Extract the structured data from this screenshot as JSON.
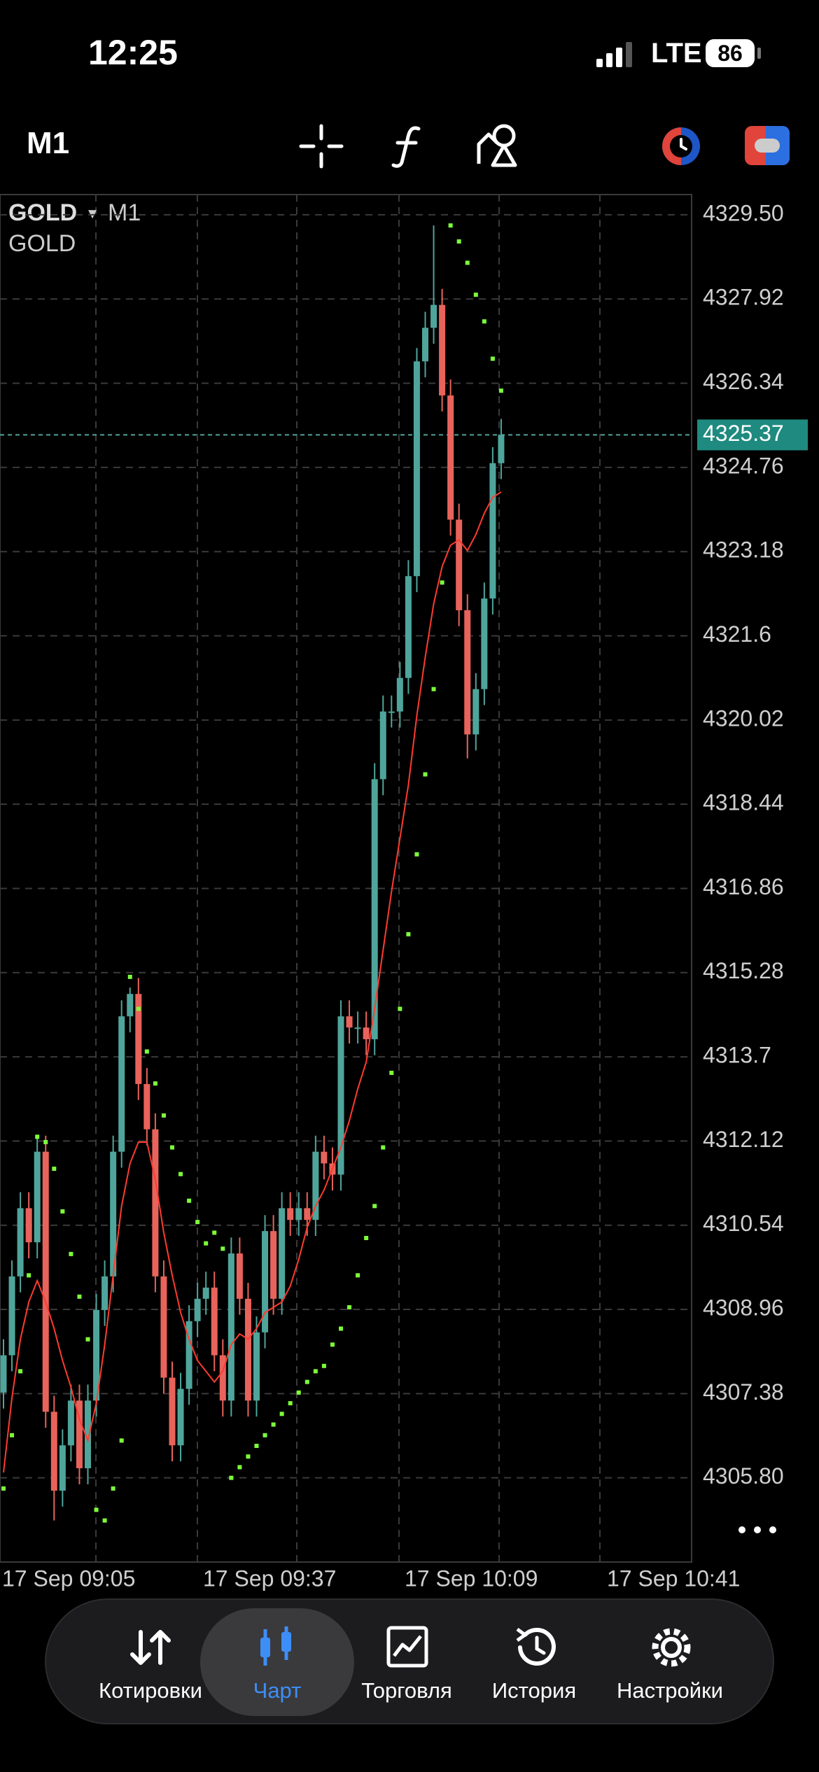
{
  "status_bar": {
    "time": "12:25",
    "network": "LTE",
    "battery": "86"
  },
  "toolbar": {
    "timeframe": "M1"
  },
  "chart_data": {
    "type": "candlestick",
    "symbol": "GOLD",
    "symbol_timeframe": "M1",
    "subtitle": "GOLD",
    "up_color": "#4fa59b",
    "down_color": "#e8635b",
    "ma_color": "#ff3b30",
    "sar_color": "#7dff3a",
    "open": [
      4307.4,
      4308.1,
      4309.58,
      4310.86,
      4310.22,
      4311.92,
      4307.04,
      4305.56,
      4306.41,
      4307.25,
      4305.98,
      4307.25,
      4308.95,
      4309.58,
      4311.92,
      4314.46,
      4314.88,
      4313.19,
      4312.34,
      4309.58,
      4307.68,
      4306.41,
      4307.47,
      4308.74,
      4309.16,
      4309.37,
      4308.1,
      4307.25,
      4310.01,
      4309.16,
      4307.25,
      4308.53,
      4310.43,
      4309.16,
      4310.86,
      4310.64,
      4310.86,
      4310.64,
      4311.92,
      4311.7,
      4311.49,
      4314.46,
      4314.25,
      4314.25,
      4314.03,
      4318.91,
      4320.18,
      4320.18,
      4320.81,
      4322.72,
      4326.75,
      4327.38,
      4327.81,
      4326.11,
      4323.78,
      4322.08,
      4319.75,
      4320.6,
      4322.3,
      4324.84
    ],
    "high": [
      4308.4,
      4309.88,
      4311.16,
      4311.16,
      4312.22,
      4312.22,
      4307.34,
      4306.71,
      4307.55,
      4307.55,
      4307.55,
      4309.25,
      4309.88,
      4312.22,
      4314.76,
      4315.0,
      4315.18,
      4313.49,
      4312.64,
      4309.88,
      4307.98,
      4307.77,
      4309.04,
      4309.46,
      4309.67,
      4309.67,
      4308.4,
      4310.31,
      4310.31,
      4309.46,
      4308.83,
      4310.73,
      4310.73,
      4311.16,
      4311.16,
      4311.16,
      4311.16,
      4312.22,
      4312.22,
      4312.0,
      4314.76,
      4314.76,
      4314.55,
      4314.55,
      4319.21,
      4320.48,
      4320.48,
      4321.11,
      4323.02,
      4327.0,
      4327.68,
      4329.3,
      4328.11,
      4326.41,
      4324.08,
      4322.38,
      4320.9,
      4322.6,
      4325.14,
      4325.67
    ],
    "low": [
      4307.1,
      4307.8,
      4309.28,
      4309.92,
      4309.92,
      4306.74,
      4305.0,
      4305.26,
      4306.11,
      4305.68,
      4305.68,
      4306.95,
      4308.65,
      4309.28,
      4311.62,
      4314.16,
      4312.89,
      4312.04,
      4309.28,
      4307.38,
      4306.11,
      4306.11,
      4307.17,
      4308.44,
      4308.86,
      4307.8,
      4306.95,
      4306.95,
      4308.86,
      4306.95,
      4306.95,
      4308.23,
      4308.86,
      4308.86,
      4310.34,
      4310.34,
      4310.34,
      4310.34,
      4311.4,
      4311.19,
      4311.19,
      4313.95,
      4313.95,
      4313.73,
      4313.73,
      4318.61,
      4319.88,
      4319.88,
      4320.51,
      4322.42,
      4326.45,
      4327.08,
      4325.81,
      4323.48,
      4321.78,
      4319.3,
      4319.45,
      4320.3,
      4322.0,
      4324.54
    ],
    "close": [
      4308.1,
      4309.58,
      4310.86,
      4310.22,
      4311.92,
      4307.04,
      4305.56,
      4306.41,
      4307.25,
      4305.98,
      4307.25,
      4308.95,
      4309.58,
      4311.92,
      4314.46,
      4314.88,
      4313.19,
      4312.34,
      4309.58,
      4307.68,
      4306.41,
      4307.47,
      4308.74,
      4309.16,
      4309.37,
      4308.1,
      4307.25,
      4310.01,
      4309.16,
      4307.25,
      4308.53,
      4310.43,
      4309.16,
      4310.86,
      4310.64,
      4310.86,
      4310.64,
      4311.92,
      4311.7,
      4311.49,
      4314.46,
      4314.25,
      4314.25,
      4314.03,
      4318.91,
      4320.18,
      4320.18,
      4320.81,
      4322.72,
      4326.75,
      4327.38,
      4327.81,
      4326.11,
      4323.78,
      4322.08,
      4319.75,
      4320.6,
      4322.3,
      4324.84,
      4325.37
    ],
    "ma": [
      4305.9,
      4307.3,
      4308.4,
      4309.1,
      4309.5,
      4309.1,
      4308.6,
      4308.0,
      4307.5,
      4306.9,
      4306.5,
      4307.2,
      4308.3,
      4309.6,
      4310.9,
      4311.7,
      4312.1,
      4312.1,
      4311.4,
      4310.4,
      4309.6,
      4308.9,
      4308.4,
      4308.0,
      4307.8,
      4307.6,
      4307.8,
      4308.3,
      4308.5,
      4308.4,
      4308.6,
      4308.9,
      4309.0,
      4309.1,
      4309.4,
      4309.9,
      4310.5,
      4310.9,
      4311.2,
      4311.6,
      4312.0,
      4312.5,
      4313.1,
      4313.6,
      4314.6,
      4315.7,
      4316.8,
      4317.8,
      4318.8,
      4320.1,
      4321.2,
      4322.2,
      4322.9,
      4323.3,
      4323.4,
      4323.2,
      4323.5,
      4323.9,
      4324.2,
      4324.3
    ],
    "sar": [
      4305.6,
      4306.6,
      4307.8,
      4309.6,
      4312.2,
      4312.1,
      4311.6,
      4310.8,
      4310.0,
      4309.2,
      4308.4,
      4305.2,
      4305.0,
      4305.6,
      4306.5,
      4315.2,
      4314.6,
      4313.8,
      4313.2,
      4312.6,
      4312.0,
      4311.5,
      4311.0,
      4310.6,
      4310.2,
      4310.4,
      4310.1,
      4305.8,
      4306.0,
      4306.2,
      4306.4,
      4306.6,
      4306.8,
      4307.0,
      4307.2,
      4307.4,
      4307.6,
      4307.8,
      4307.9,
      4308.3,
      4308.6,
      4309.0,
      4309.6,
      4310.3,
      4310.9,
      4312.0,
      4313.4,
      4314.6,
      4316.0,
      4317.5,
      4319.0,
      4320.6,
      4322.6,
      4329.3,
      4329.0,
      4328.6,
      4328.0,
      4327.5,
      4326.8,
      4326.2
    ],
    "current_price": 4325.37,
    "ylim": [
      4304.22,
      4329.88
    ],
    "yticks": [
      {
        "value": 4329.5,
        "label": "4329.50"
      },
      4327.92,
      4326.34,
      4324.76,
      4323.18,
      4321.6,
      4320.02,
      4318.44,
      4316.86,
      4315.28,
      4313.7,
      4312.12,
      4310.54,
      4308.96,
      4307.38,
      {
        "value": 4305.8,
        "label": "4305.80"
      }
    ],
    "xticks": [
      "17 Sep 09:05",
      "17 Sep 09:37",
      "17 Sep 10:09",
      "17 Sep 10:41"
    ],
    "grid": true
  },
  "nav": {
    "items": [
      "Котировки",
      "Чарт",
      "Торговля",
      "История",
      "Настройки"
    ],
    "active": 1
  }
}
